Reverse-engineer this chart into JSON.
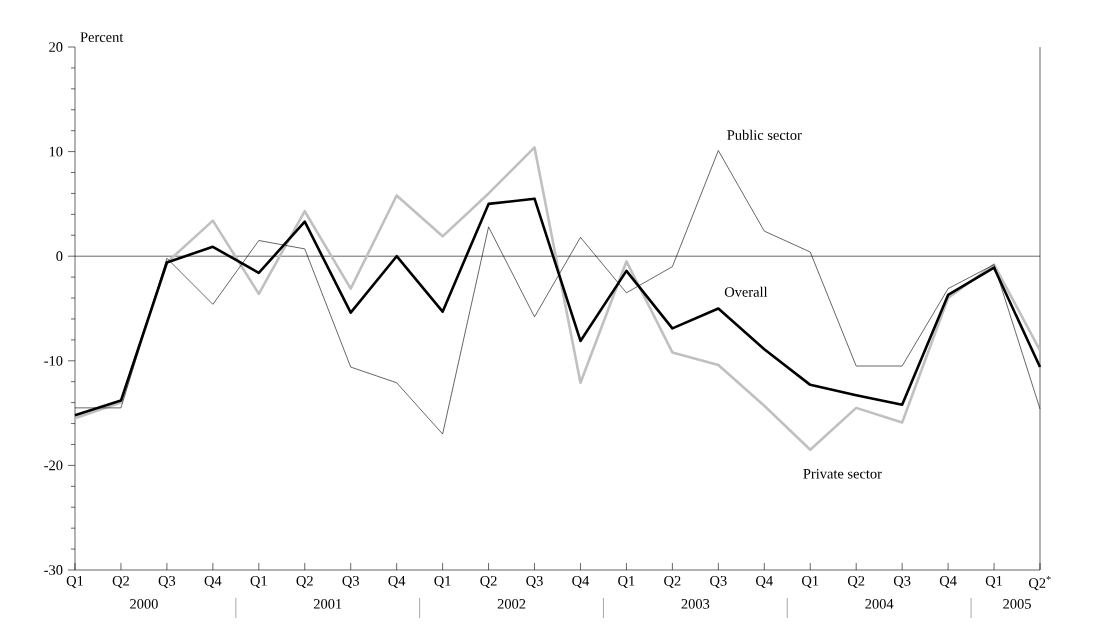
{
  "chart_data": {
    "type": "line",
    "ylabel": "Percent",
    "categories": [
      "Q1",
      "Q2",
      "Q3",
      "Q4",
      "Q1",
      "Q2",
      "Q3",
      "Q4",
      "Q1",
      "Q2",
      "Q3",
      "Q4",
      "Q1",
      "Q2",
      "Q3",
      "Q4",
      "Q1",
      "Q2",
      "Q3",
      "Q4",
      "Q1",
      "Q2$^{*}$"
    ],
    "series": [
      {
        "name": "Private sector",
        "color": "#c0c0c0",
        "values": [
          -15.5,
          -14.0,
          -0.6,
          3.4,
          -3.6,
          4.3,
          -3.1,
          5.8,
          1.9,
          6.0,
          10.4,
          -12.1,
          -0.5,
          -9.2,
          -10.4,
          -14.3,
          -18.5,
          -14.5,
          -15.9,
          -4.0,
          -0.8,
          -9.0
        ]
      },
      {
        "name": "Public sector",
        "color": "#000000",
        "values": [
          -14.5,
          -14.5,
          -0.2,
          -4.6,
          1.5,
          0.7,
          -10.6,
          -12.1,
          -17.0,
          2.8,
          -5.8,
          1.8,
          -3.5,
          -1.0,
          10.1,
          2.4,
          0.4,
          -10.5,
          -10.5,
          -3.1,
          -0.8,
          -14.6
        ]
      },
      {
        "name": "Overall",
        "color": "#000000",
        "values": [
          -15.2,
          -13.8,
          -0.6,
          0.9,
          -1.6,
          3.3,
          -5.4,
          0.0,
          -5.3,
          5.0,
          5.5,
          -8.1,
          -1.4,
          -6.9,
          -5.0,
          -8.9,
          -12.3,
          -13.3,
          -14.2,
          -3.7,
          -1.1,
          -10.6
        ]
      }
    ],
    "annotations": [
      "2000",
      "2001",
      "2002",
      "2003",
      "2004",
      "2005"
    ],
    "ylim": [
      -30,
      20
    ],
    "yticks": [
      -30,
      -20,
      -10,
      0,
      10,
      20
    ],
    "ref_lines": [
      {
        "axis": "y",
        "value": 0
      }
    ],
    "marker": "none",
    "line_style": "solid",
    "grid": false
  }
}
